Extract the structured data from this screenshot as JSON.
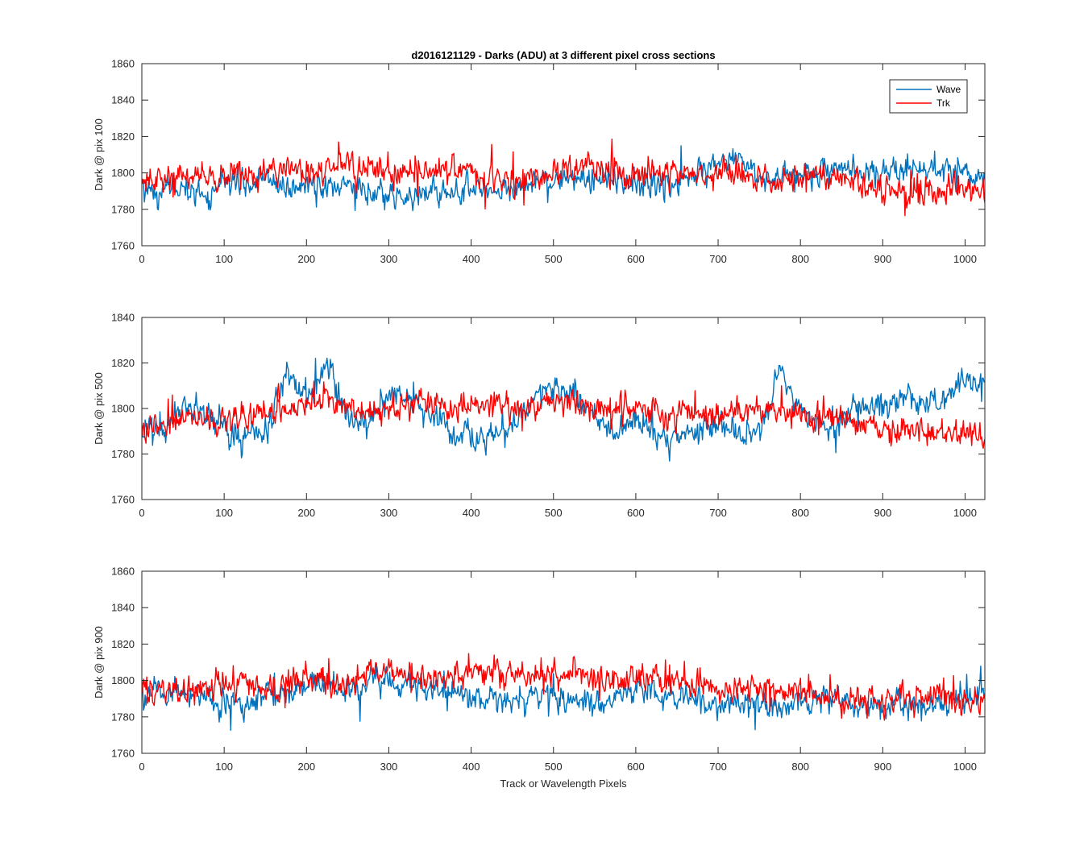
{
  "figure": {
    "title": "d2016121129 - Darks (ADU) at 3 different pixel cross sections",
    "xlabel": "Track or Wavelength Pixels"
  },
  "legend": {
    "placement": "top-right",
    "entries": [
      {
        "name": "Wave",
        "color": "#0072BD"
      },
      {
        "name": "Trk",
        "color": "#FF0000"
      }
    ]
  },
  "chart_data": [
    {
      "type": "line",
      "ylabel": "Dark @ pix 100",
      "xlim": [
        0,
        1024
      ],
      "ylim": [
        1760,
        1860
      ],
      "xticks": [
        "0",
        "100",
        "200",
        "300",
        "400",
        "500",
        "600",
        "700",
        "800",
        "900",
        "1000"
      ],
      "yticks": [
        "1760",
        "1780",
        "1800",
        "1820",
        "1840",
        "1860"
      ],
      "series": [
        {
          "name": "Wave",
          "color": "#0072BD",
          "x": [
            0,
            25,
            50,
            75,
            100,
            125,
            150,
            175,
            200,
            225,
            250,
            275,
            300,
            325,
            350,
            375,
            400,
            425,
            450,
            475,
            500,
            525,
            550,
            575,
            600,
            625,
            650,
            675,
            700,
            725,
            750,
            775,
            800,
            825,
            850,
            875,
            900,
            925,
            950,
            975,
            1000,
            1024
          ],
          "y": [
            1793,
            1789,
            1792,
            1788,
            1795,
            1794,
            1797,
            1791,
            1793,
            1790,
            1792,
            1789,
            1788,
            1786,
            1790,
            1789,
            1791,
            1790,
            1792,
            1796,
            1795,
            1797,
            1795,
            1797,
            1793,
            1795,
            1792,
            1801,
            1807,
            1805,
            1800,
            1796,
            1799,
            1801,
            1803,
            1802,
            1798,
            1799,
            1801,
            1803,
            1802,
            1794
          ]
        },
        {
          "name": "Trk",
          "color": "#FF0000",
          "x": [
            0,
            25,
            50,
            75,
            100,
            125,
            150,
            175,
            200,
            225,
            250,
            275,
            300,
            325,
            350,
            375,
            400,
            425,
            450,
            475,
            500,
            525,
            550,
            575,
            600,
            625,
            650,
            675,
            700,
            725,
            750,
            775,
            800,
            825,
            850,
            875,
            900,
            925,
            950,
            975,
            1000,
            1024
          ],
          "y": [
            1796,
            1798,
            1797,
            1799,
            1800,
            1799,
            1801,
            1803,
            1800,
            1802,
            1804,
            1803,
            1801,
            1799,
            1800,
            1802,
            1800,
            1798,
            1796,
            1795,
            1800,
            1803,
            1804,
            1802,
            1800,
            1799,
            1801,
            1800,
            1799,
            1798,
            1797,
            1796,
            1798,
            1799,
            1797,
            1795,
            1791,
            1789,
            1790,
            1791,
            1792,
            1791
          ]
        }
      ]
    },
    {
      "type": "line",
      "ylabel": "Dark @ pix 500",
      "xlim": [
        0,
        1024
      ],
      "ylim": [
        1760,
        1840
      ],
      "xticks": [
        "0",
        "100",
        "200",
        "300",
        "400",
        "500",
        "600",
        "700",
        "800",
        "900",
        "1000"
      ],
      "yticks": [
        "1760",
        "1780",
        "1800",
        "1820",
        "1840"
      ],
      "series": [
        {
          "name": "Wave",
          "color": "#0072BD",
          "x": [
            0,
            25,
            50,
            75,
            100,
            125,
            150,
            175,
            200,
            225,
            250,
            275,
            300,
            325,
            350,
            375,
            400,
            425,
            450,
            475,
            500,
            525,
            550,
            575,
            600,
            625,
            650,
            675,
            700,
            725,
            750,
            775,
            800,
            825,
            850,
            875,
            900,
            925,
            950,
            975,
            1000,
            1024
          ],
          "y": [
            1792,
            1790,
            1800,
            1798,
            1790,
            1787,
            1790,
            1815,
            1805,
            1820,
            1796,
            1792,
            1808,
            1802,
            1797,
            1791,
            1786,
            1788,
            1793,
            1805,
            1810,
            1807,
            1796,
            1790,
            1793,
            1789,
            1788,
            1790,
            1795,
            1787,
            1790,
            1818,
            1800,
            1790,
            1795,
            1800,
            1802,
            1805,
            1800,
            1806,
            1812,
            1810
          ]
        },
        {
          "name": "Trk",
          "color": "#FF0000",
          "x": [
            0,
            25,
            50,
            75,
            100,
            125,
            150,
            175,
            200,
            225,
            250,
            275,
            300,
            325,
            350,
            375,
            400,
            425,
            450,
            475,
            500,
            525,
            550,
            575,
            600,
            625,
            650,
            675,
            700,
            725,
            750,
            775,
            800,
            825,
            850,
            875,
            900,
            925,
            950,
            975,
            1000,
            1024
          ],
          "y": [
            1790,
            1793,
            1795,
            1796,
            1797,
            1797,
            1799,
            1798,
            1803,
            1805,
            1800,
            1797,
            1801,
            1804,
            1802,
            1800,
            1803,
            1802,
            1801,
            1800,
            1803,
            1802,
            1800,
            1801,
            1800,
            1799,
            1798,
            1797,
            1796,
            1797,
            1798,
            1799,
            1797,
            1796,
            1795,
            1793,
            1792,
            1791,
            1790,
            1789,
            1790,
            1788
          ]
        }
      ]
    },
    {
      "type": "line",
      "ylabel": "Dark @ pix 900",
      "xlim": [
        0,
        1024
      ],
      "ylim": [
        1760,
        1860
      ],
      "xticks": [
        "0",
        "100",
        "200",
        "300",
        "400",
        "500",
        "600",
        "700",
        "800",
        "900",
        "1000"
      ],
      "yticks": [
        "1760",
        "1780",
        "1800",
        "1820",
        "1840",
        "1860"
      ],
      "series": [
        {
          "name": "Wave",
          "color": "#0072BD",
          "x": [
            0,
            25,
            50,
            75,
            100,
            125,
            150,
            175,
            200,
            225,
            250,
            275,
            300,
            325,
            350,
            375,
            400,
            425,
            450,
            475,
            500,
            525,
            550,
            575,
            600,
            625,
            650,
            675,
            700,
            725,
            750,
            775,
            800,
            825,
            850,
            875,
            900,
            925,
            950,
            975,
            1000,
            1024
          ],
          "y": [
            1796,
            1797,
            1793,
            1790,
            1787,
            1785,
            1792,
            1794,
            1797,
            1795,
            1794,
            1798,
            1799,
            1797,
            1796,
            1793,
            1791,
            1789,
            1790,
            1791,
            1790,
            1789,
            1788,
            1791,
            1795,
            1793,
            1790,
            1788,
            1786,
            1788,
            1787,
            1786,
            1788,
            1790,
            1787,
            1785,
            1786,
            1788,
            1785,
            1787,
            1789,
            1792
          ]
        },
        {
          "name": "Trk",
          "color": "#FF0000",
          "x": [
            0,
            25,
            50,
            75,
            100,
            125,
            150,
            175,
            200,
            225,
            250,
            275,
            300,
            325,
            350,
            375,
            400,
            425,
            450,
            475,
            500,
            525,
            550,
            575,
            600,
            625,
            650,
            675,
            700,
            725,
            750,
            775,
            800,
            825,
            850,
            875,
            900,
            925,
            950,
            975,
            1000,
            1024
          ],
          "y": [
            1795,
            1797,
            1792,
            1795,
            1797,
            1799,
            1796,
            1797,
            1799,
            1801,
            1800,
            1804,
            1805,
            1803,
            1801,
            1802,
            1804,
            1806,
            1805,
            1803,
            1804,
            1805,
            1803,
            1801,
            1802,
            1800,
            1798,
            1797,
            1795,
            1796,
            1795,
            1794,
            1795,
            1793,
            1790,
            1789,
            1790,
            1791,
            1792,
            1791,
            1790,
            1789
          ]
        }
      ]
    }
  ]
}
